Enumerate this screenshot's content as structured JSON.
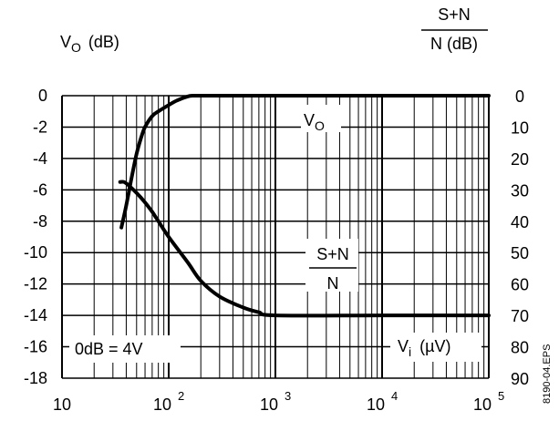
{
  "chart_data": {
    "type": "line",
    "x_scale": "log",
    "xlim": [
      10,
      100000
    ],
    "x_ticks": [
      {
        "value": 10,
        "mantissa": "10",
        "exponent": ""
      },
      {
        "value": 100,
        "mantissa": "10",
        "exponent": "2"
      },
      {
        "value": 1000,
        "mantissa": "10",
        "exponent": "3"
      },
      {
        "value": 10000,
        "mantissa": "10",
        "exponent": "4"
      },
      {
        "value": 100000,
        "mantissa": "10",
        "exponent": "5"
      }
    ],
    "left_axis": {
      "label_main": "V",
      "label_sub": "O",
      "label_unit": "(dB)",
      "ylim": [
        -18,
        0
      ],
      "ticks": [
        "0",
        "-2",
        "-4",
        "-6",
        "-8",
        "-10",
        "-12",
        "-14",
        "-16",
        "-18"
      ]
    },
    "right_axis": {
      "label_top": "S+N",
      "label_bottom": "N (dB)",
      "ylim": [
        0,
        90
      ],
      "ticks": [
        "0",
        "10",
        "20",
        "30",
        "40",
        "50",
        "60",
        "70",
        "80",
        "90"
      ]
    },
    "grid": true,
    "series": [
      {
        "name_main": "V",
        "name_sub": "O",
        "axis": "left",
        "x": [
          36,
          40,
          45,
          50,
          55,
          60,
          70,
          80,
          100,
          120,
          150,
          170,
          200,
          1000,
          10000,
          100000
        ],
        "y": [
          -8.4,
          -7.0,
          -5.2,
          -3.7,
          -2.7,
          -2.0,
          -1.3,
          -1.0,
          -0.6,
          -0.3,
          -0.05,
          0,
          0,
          0,
          0,
          0
        ]
      },
      {
        "name_top": "S+N",
        "name_bottom": "N",
        "axis": "right",
        "x": [
          35,
          38,
          42,
          50,
          60,
          70,
          80,
          100,
          150,
          200,
          300,
          500,
          700,
          1000,
          10000,
          100000
        ],
        "y": [
          27.5,
          27.5,
          28.5,
          31.0,
          34.0,
          37.0,
          40.0,
          45.0,
          53.0,
          59.0,
          64.0,
          67.5,
          69.0,
          70.0,
          70.0,
          70.0
        ]
      }
    ],
    "annotations": {
      "zero_db": "0dB = 4V",
      "vi_main": "V",
      "vi_sub": "i",
      "vi_unit": "(µV)"
    },
    "figure_id": "8190-04.EPS"
  }
}
